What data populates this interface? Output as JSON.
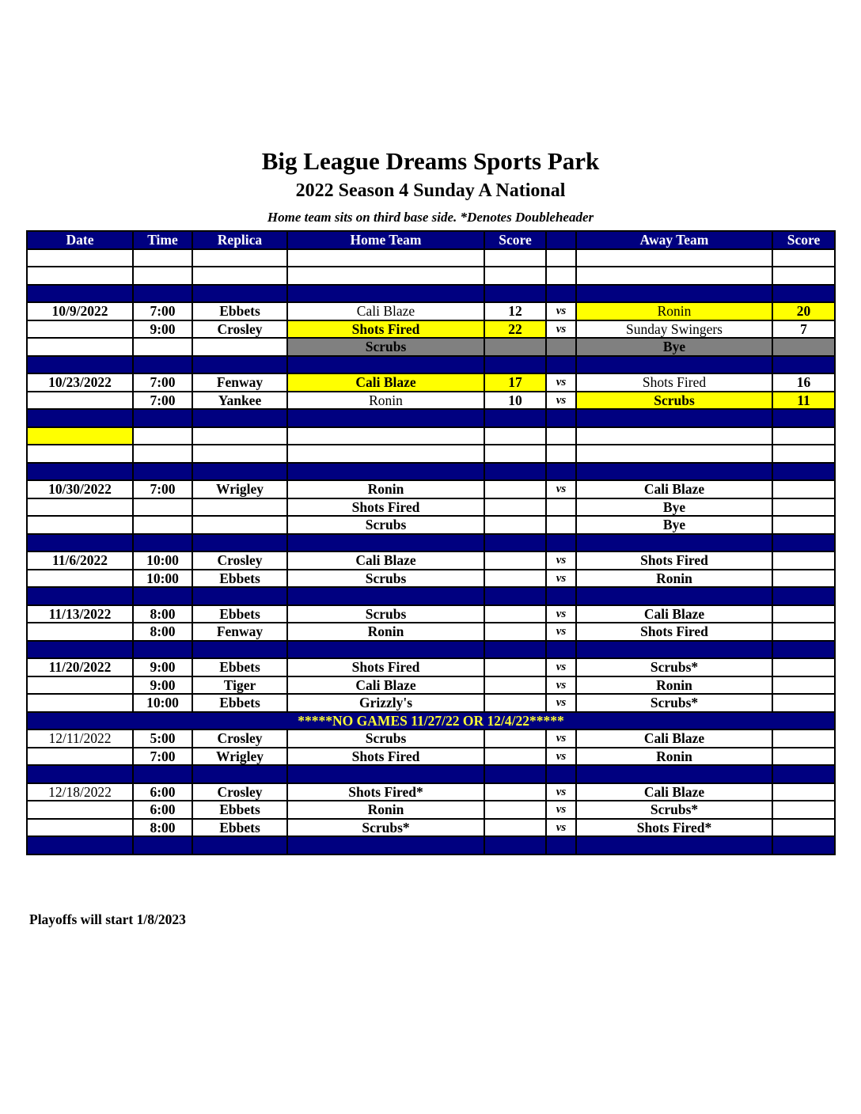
{
  "title": "Big League Dreams Sports Park",
  "subtitle": "2022 Season 4 Sunday A National",
  "note": "Home team sits on third base side.  *Denotes Doubleheader",
  "columns": [
    "Date",
    "Time",
    "Replica",
    "Home Team",
    "Score",
    "",
    "Away Team",
    "Score"
  ],
  "colors": {
    "header": "#000080",
    "highlight": "#ffff00",
    "bye": "#808080",
    "banner_text": "#ffff33"
  },
  "rows": [
    {
      "type": "blank"
    },
    {
      "type": "blank"
    },
    {
      "type": "navy"
    },
    {
      "type": "game",
      "cells": [
        "10/9/2022",
        "7:00",
        "Ebbets",
        "Cali Blaze",
        "12",
        "vs",
        "Ronin",
        "20"
      ],
      "hl": [
        6,
        7
      ],
      "light": [
        3,
        6
      ]
    },
    {
      "type": "game",
      "cells": [
        "",
        "9:00",
        "Crosley",
        "Shots Fired",
        "22",
        "vs",
        "Sunday Swingers",
        "7"
      ],
      "hl": [
        3,
        4
      ],
      "light": [
        6
      ]
    },
    {
      "type": "game",
      "cells": [
        "",
        "",
        "",
        "Scrubs",
        "",
        "",
        "Bye",
        ""
      ],
      "gray": [
        3,
        4,
        5,
        6,
        7
      ]
    },
    {
      "type": "navy"
    },
    {
      "type": "game",
      "cells": [
        "10/23/2022",
        "7:00",
        "Fenway",
        "Cali Blaze",
        "17",
        "vs",
        "Shots Fired",
        "16"
      ],
      "hl": [
        3,
        4
      ],
      "light": [
        6
      ]
    },
    {
      "type": "game",
      "cells": [
        "",
        "7:00",
        "Yankee",
        "Ronin",
        "10",
        "vs",
        "Scrubs",
        "11"
      ],
      "hl": [
        6,
        7
      ],
      "light": [
        3
      ]
    },
    {
      "type": "navy"
    },
    {
      "type": "blank",
      "hl": [
        0
      ]
    },
    {
      "type": "blank"
    },
    {
      "type": "navy"
    },
    {
      "type": "game",
      "cells": [
        "10/30/2022",
        "7:00",
        "Wrigley",
        "Ronin",
        "",
        "vs",
        "Cali Blaze",
        ""
      ]
    },
    {
      "type": "game",
      "cells": [
        "",
        "",
        "",
        "Shots Fired",
        "",
        "",
        "Bye",
        ""
      ]
    },
    {
      "type": "game",
      "cells": [
        "",
        "",
        "",
        "Scrubs",
        "",
        "",
        "Bye",
        ""
      ]
    },
    {
      "type": "navy"
    },
    {
      "type": "game",
      "cells": [
        "11/6/2022",
        "10:00",
        "Crosley",
        "Cali Blaze",
        "",
        "vs",
        "Shots Fired",
        ""
      ]
    },
    {
      "type": "game",
      "cells": [
        "",
        "10:00",
        "Ebbets",
        "Scrubs",
        "",
        "vs",
        "Ronin",
        ""
      ]
    },
    {
      "type": "navy"
    },
    {
      "type": "game",
      "cells": [
        "11/13/2022",
        "8:00",
        "Ebbets",
        "Scrubs",
        "",
        "vs",
        "Cali Blaze",
        ""
      ]
    },
    {
      "type": "game",
      "cells": [
        "",
        "8:00",
        "Fenway",
        "Ronin",
        "",
        "vs",
        "Shots Fired",
        ""
      ]
    },
    {
      "type": "navy"
    },
    {
      "type": "game",
      "cells": [
        "11/20/2022",
        "9:00",
        "Ebbets",
        "Shots Fired",
        "",
        "vs",
        "Scrubs*",
        ""
      ]
    },
    {
      "type": "game",
      "cells": [
        "",
        "9:00",
        "Tiger",
        "Cali Blaze",
        "",
        "vs",
        "Ronin",
        ""
      ]
    },
    {
      "type": "game",
      "cells": [
        "",
        "10:00",
        "Ebbets",
        "Grizzly's",
        "",
        "vs",
        "Scrubs*",
        ""
      ]
    },
    {
      "type": "note",
      "text": "*****NO GAMES 11/27/22 OR 12/4/22*****"
    },
    {
      "type": "game",
      "cells": [
        "12/11/2022",
        "5:00",
        "Crosley",
        "Scrubs",
        "",
        "vs",
        "Cali Blaze",
        ""
      ],
      "light": [
        0
      ]
    },
    {
      "type": "game",
      "cells": [
        "",
        "7:00",
        "Wrigley",
        "Shots Fired",
        "",
        "vs",
        "Ronin",
        ""
      ]
    },
    {
      "type": "navy"
    },
    {
      "type": "game",
      "cells": [
        "12/18/2022",
        "6:00",
        "Crosley",
        "Shots Fired*",
        "",
        "vs",
        "Cali Blaze",
        ""
      ],
      "light": [
        0
      ]
    },
    {
      "type": "game",
      "cells": [
        "",
        "6:00",
        "Ebbets",
        "Ronin",
        "",
        "vs",
        "Scrubs*",
        ""
      ]
    },
    {
      "type": "game",
      "cells": [
        "",
        "8:00",
        "Ebbets",
        "Scrubs*",
        "",
        "vs",
        "Shots Fired*",
        ""
      ]
    },
    {
      "type": "navy"
    }
  ],
  "footer": "Playoffs will start 1/8/2023"
}
